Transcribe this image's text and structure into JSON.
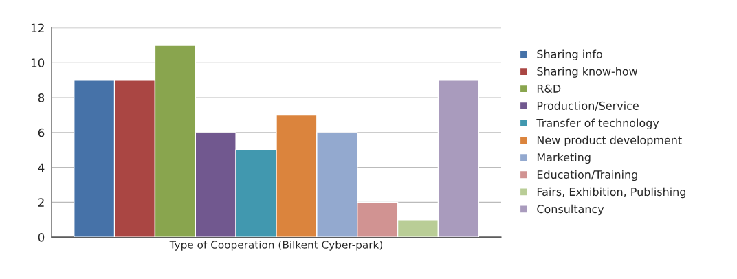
{
  "chart_data": {
    "type": "bar",
    "categories": [
      "Type of Cooperation (Bilkent Cyber-park)"
    ],
    "series": [
      {
        "name": "Sharing info",
        "color": "#4672a8",
        "values": [
          9
        ]
      },
      {
        "name": "Sharing know-how",
        "color": "#aa4643",
        "values": [
          9
        ]
      },
      {
        "name": "R&D",
        "color": "#89a54e",
        "values": [
          11
        ]
      },
      {
        "name": "Production/Service",
        "color": "#71588f",
        "values": [
          6
        ]
      },
      {
        "name": "Transfer of technology",
        "color": "#4198af",
        "values": [
          5
        ]
      },
      {
        "name": "New product development",
        "color": "#db843d",
        "values": [
          7
        ]
      },
      {
        "name": "Marketing",
        "color": "#93a9cf",
        "values": [
          6
        ]
      },
      {
        "name": "Education/Training",
        "color": "#d19392",
        "values": [
          2
        ]
      },
      {
        "name": "Fairs, Exhibition, Publishing",
        "color": "#b9cd96",
        "values": [
          1
        ]
      },
      {
        "name": "Consultancy",
        "color": "#a99bbd",
        "values": [
          9
        ]
      }
    ],
    "ylim": [
      0,
      12
    ],
    "yticks": [
      0,
      2,
      4,
      6,
      8,
      10,
      12
    ],
    "grid": "y",
    "legend": "right"
  }
}
